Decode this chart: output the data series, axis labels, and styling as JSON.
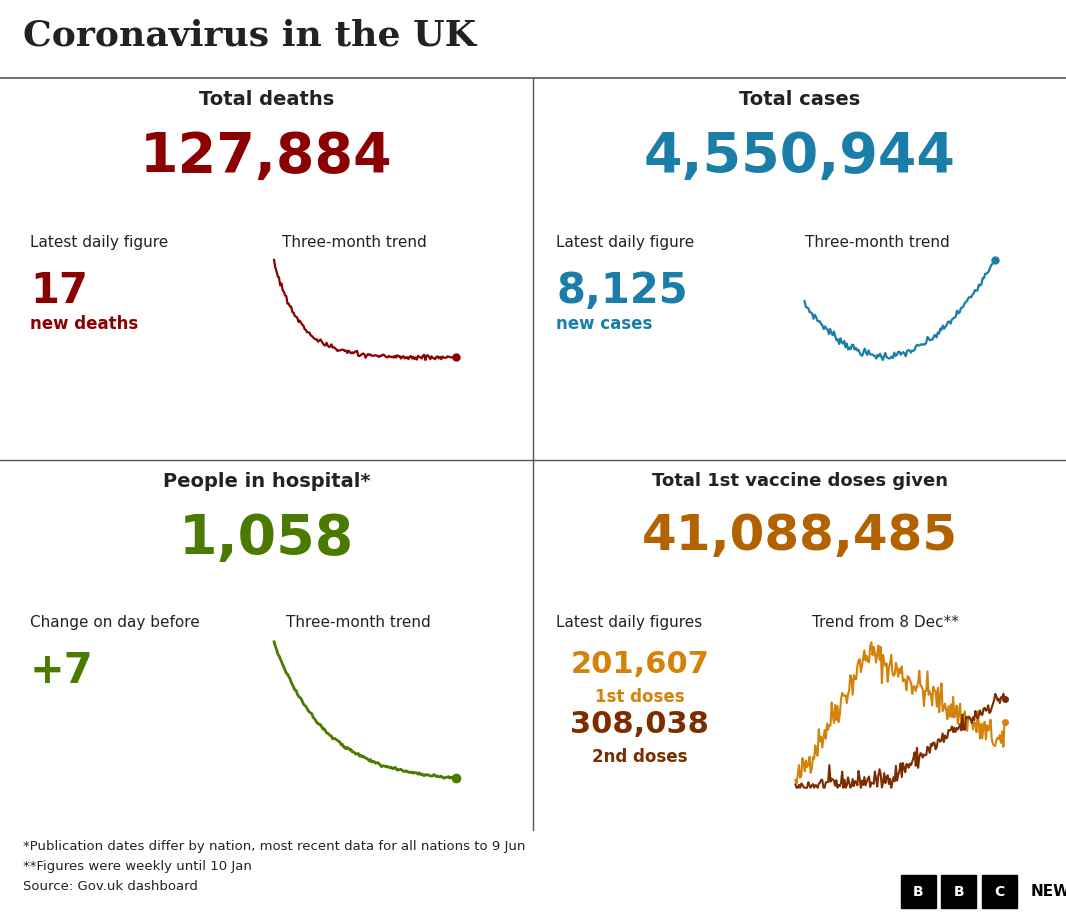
{
  "title": "Coronavirus in the UK",
  "title_fontsize": 26,
  "bg_color": "#ffffff",
  "text_color": "#222222",
  "divider_color": "#555555",
  "q1_header": "Total deaths",
  "q1_big_number": "127,884",
  "q1_big_color": "#8b0000",
  "q1_label1": "Latest daily figure",
  "q1_label2": "Three-month trend",
  "q1_small_number": "17",
  "q1_small_color": "#8b0000",
  "q1_small_label": "new deaths",
  "q1_line_color": "#8b0000",
  "q2_header": "Total cases",
  "q2_big_number": "4,550,944",
  "q2_big_color": "#1a7ea8",
  "q2_label1": "Latest daily figure",
  "q2_label2": "Three-month trend",
  "q2_small_number": "8,125",
  "q2_small_color": "#1a7ea8",
  "q2_small_label": "new cases",
  "q2_line_color": "#1a7ea8",
  "q3_header": "People in hospital*",
  "q3_big_number": "1,058",
  "q3_big_color": "#4a7a00",
  "q3_label1": "Change on day before",
  "q3_label2": "Three-month trend",
  "q3_small_number": "+7",
  "q3_small_color": "#4a7a00",
  "q3_line_color": "#4a7a00",
  "q4_header": "Total 1st vaccine doses given",
  "q4_big_number": "41,088,485",
  "q4_big_color": "#b36200",
  "q4_label1": "Latest daily figures",
  "q4_label2": "Trend from 8 Dec**",
  "q4_dose1_number": "201,607",
  "q4_dose1_label": "1st doses",
  "q4_dose1_color": "#d4820a",
  "q4_dose2_number": "308,038",
  "q4_dose2_label": "2nd doses",
  "q4_dose2_color": "#7b2d00",
  "footnote1": "*Publication dates differ by nation, most recent data for all nations to 9 Jun",
  "footnote2": "**Figures were weekly until 10 Jan",
  "footnote3": "Source: Gov.uk dashboard",
  "footnote_fontsize": 9.5
}
